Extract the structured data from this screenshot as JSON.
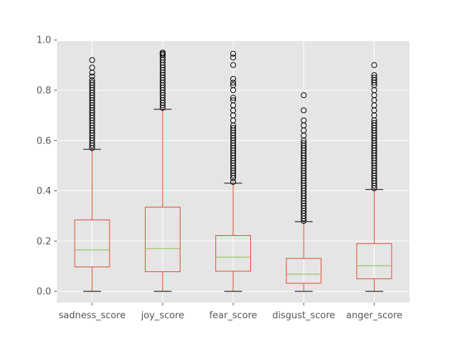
{
  "chart_data": {
    "type": "box",
    "categories": [
      "sadness_score",
      "joy_score",
      "fear_score",
      "disgust_score",
      "anger_score"
    ],
    "ylim": [
      -0.045,
      0.995
    ],
    "yticks": [
      "0.0",
      "0.2",
      "0.4",
      "0.6",
      "0.8",
      "1.0"
    ],
    "grid": true,
    "colors": {
      "box": "#E24A33",
      "median": "#8EBA42",
      "flier": "#000000",
      "background": "#E5E5E5",
      "grid": "#ffffff"
    },
    "boxes": [
      {
        "name": "sadness_score",
        "whislo": 0.0,
        "q1": 0.097,
        "med": 0.165,
        "q3": 0.284,
        "whishi": 0.565,
        "fliers": [
          0.57,
          0.58,
          0.59,
          0.6,
          0.61,
          0.62,
          0.63,
          0.64,
          0.65,
          0.66,
          0.67,
          0.68,
          0.69,
          0.7,
          0.71,
          0.72,
          0.73,
          0.74,
          0.75,
          0.76,
          0.77,
          0.78,
          0.79,
          0.8,
          0.81,
          0.82,
          0.83,
          0.84,
          0.855,
          0.87,
          0.89,
          0.92
        ]
      },
      {
        "name": "joy_score",
        "whislo": 0.0,
        "q1": 0.078,
        "med": 0.17,
        "q3": 0.335,
        "whishi": 0.724,
        "fliers": [
          0.73,
          0.74,
          0.75,
          0.76,
          0.77,
          0.78,
          0.79,
          0.8,
          0.81,
          0.82,
          0.83,
          0.84,
          0.85,
          0.86,
          0.87,
          0.88,
          0.89,
          0.9,
          0.91,
          0.92,
          0.93,
          0.94,
          0.945,
          0.95
        ]
      },
      {
        "name": "fear_score",
        "whislo": 0.0,
        "q1": 0.08,
        "med": 0.136,
        "q3": 0.222,
        "whishi": 0.43,
        "fliers": [
          0.435,
          0.45,
          0.46,
          0.47,
          0.48,
          0.49,
          0.5,
          0.51,
          0.52,
          0.53,
          0.54,
          0.55,
          0.56,
          0.57,
          0.58,
          0.59,
          0.6,
          0.61,
          0.62,
          0.63,
          0.64,
          0.65,
          0.66,
          0.68,
          0.7,
          0.72,
          0.74,
          0.76,
          0.77,
          0.8,
          0.82,
          0.83,
          0.845,
          0.9,
          0.93,
          0.945
        ]
      },
      {
        "name": "disgust_score",
        "whislo": 0.0,
        "q1": 0.032,
        "med": 0.068,
        "q3": 0.131,
        "whishi": 0.277,
        "fliers": [
          0.28,
          0.29,
          0.3,
          0.31,
          0.32,
          0.33,
          0.34,
          0.35,
          0.36,
          0.37,
          0.38,
          0.39,
          0.4,
          0.41,
          0.42,
          0.43,
          0.44,
          0.45,
          0.46,
          0.47,
          0.48,
          0.49,
          0.5,
          0.51,
          0.52,
          0.53,
          0.54,
          0.55,
          0.56,
          0.57,
          0.58,
          0.59,
          0.6,
          0.62,
          0.64,
          0.66,
          0.68,
          0.72,
          0.78
        ]
      },
      {
        "name": "anger_score",
        "whislo": 0.0,
        "q1": 0.05,
        "med": 0.102,
        "q3": 0.19,
        "whishi": 0.405,
        "fliers": [
          0.41,
          0.42,
          0.43,
          0.44,
          0.45,
          0.46,
          0.47,
          0.48,
          0.49,
          0.5,
          0.51,
          0.52,
          0.53,
          0.54,
          0.55,
          0.56,
          0.57,
          0.58,
          0.59,
          0.6,
          0.61,
          0.62,
          0.63,
          0.64,
          0.65,
          0.66,
          0.67,
          0.68,
          0.7,
          0.72,
          0.74,
          0.76,
          0.78,
          0.8,
          0.82,
          0.83,
          0.84,
          0.85,
          0.86,
          0.9
        ]
      }
    ]
  }
}
